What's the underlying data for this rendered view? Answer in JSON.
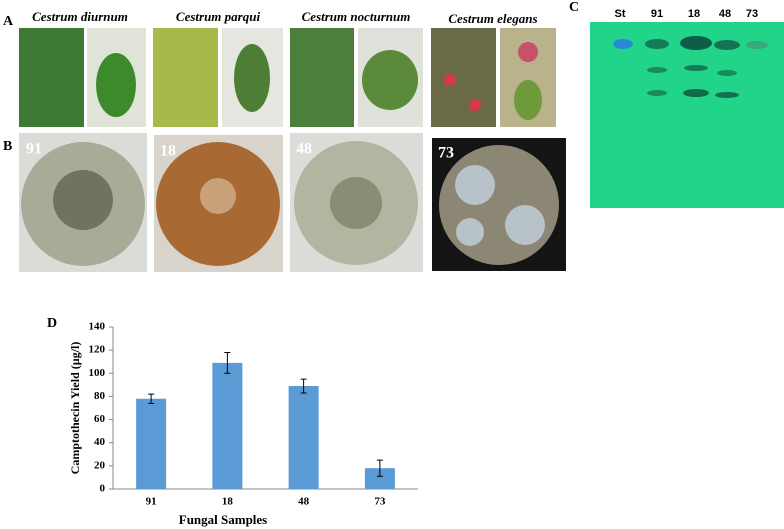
{
  "panels": {
    "A": {
      "label": "A",
      "species": [
        "Cestrum diurnum",
        "Cestrum parqui",
        "Cestrum nocturnum",
        "Cestrum elegans"
      ]
    },
    "B": {
      "label": "B",
      "samples": [
        "91",
        "18",
        "48",
        "73"
      ]
    },
    "C": {
      "label": "C",
      "lanes": [
        "St",
        "91",
        "18",
        "48",
        "73"
      ]
    }
  },
  "chart_data": {
    "type": "bar",
    "panel_label": "D",
    "x_label": "Fungal Samples",
    "y_label": "Camptothecin Yield (µg/l)",
    "categories": [
      "91",
      "18",
      "48",
      "73"
    ],
    "values": [
      78,
      109,
      89,
      18
    ],
    "errors": [
      4,
      9,
      6,
      7
    ],
    "color": "#5b9bd5",
    "ylim": [
      0,
      140
    ],
    "yticks": [
      0,
      20,
      40,
      60,
      80,
      100,
      120,
      140
    ]
  }
}
